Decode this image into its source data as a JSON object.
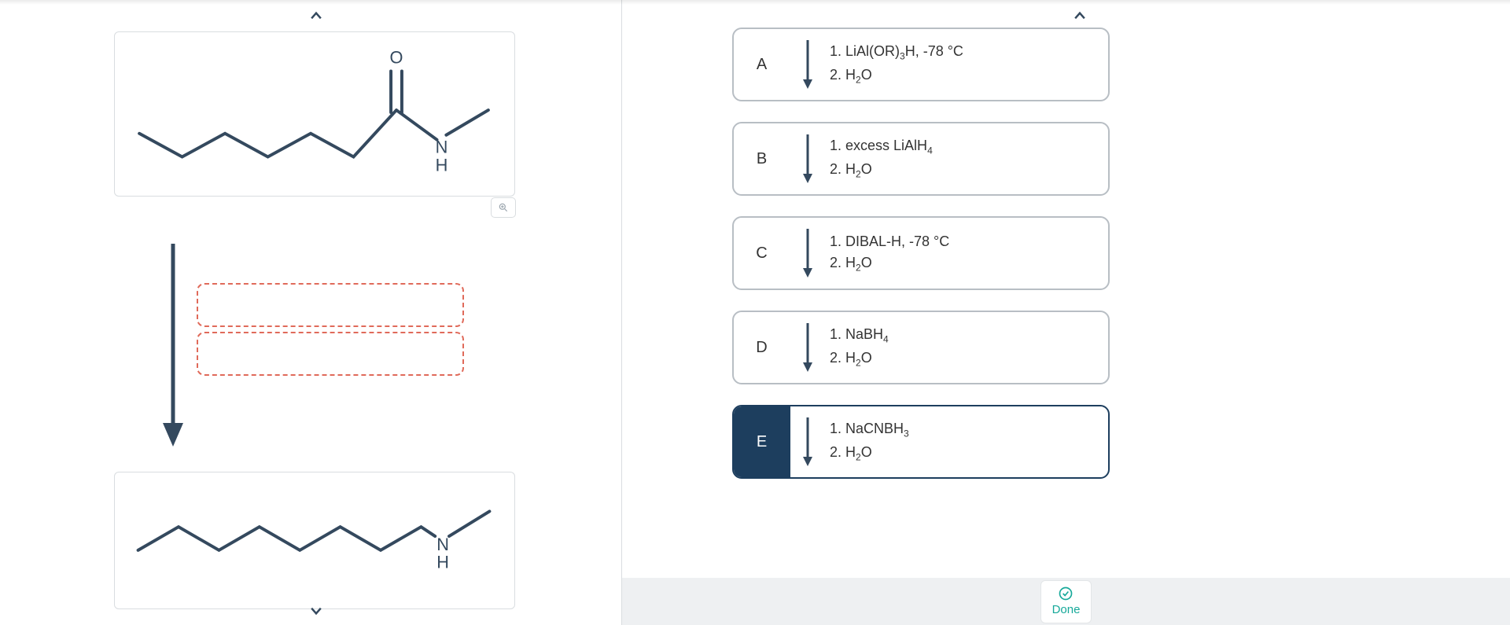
{
  "colors": {
    "border_gray": "#d9dde0",
    "option_border": "#b8bec4",
    "selected": "#1d3e5e",
    "drop_border": "#e06a5a",
    "bond": "#34495e",
    "done_accent": "#17a99a",
    "bottom_bar": "#eef0f2"
  },
  "left": {
    "top_molecule": {
      "label_O": "O",
      "label_N": "N",
      "label_H": "H"
    },
    "bottom_molecule": {
      "label_N": "N",
      "label_H": "H"
    },
    "drop_slots": 2
  },
  "options": [
    {
      "letter": "A",
      "selected": false,
      "line1_prefix": "1. LiAl(OR)",
      "line1_sub": "3",
      "line1_suffix": "H, -78 °C",
      "line2_prefix": "2. H",
      "line2_sub": "2",
      "line2_suffix": "O"
    },
    {
      "letter": "B",
      "selected": false,
      "line1_prefix": "1. excess LiAlH",
      "line1_sub": "4",
      "line1_suffix": "",
      "line2_prefix": "2. H",
      "line2_sub": "2",
      "line2_suffix": "O"
    },
    {
      "letter": "C",
      "selected": false,
      "line1_prefix": "1. DIBAL-H, -78 °C",
      "line1_sub": "",
      "line1_suffix": "",
      "line2_prefix": "2. H",
      "line2_sub": "2",
      "line2_suffix": "O"
    },
    {
      "letter": "D",
      "selected": false,
      "line1_prefix": "1. NaBH",
      "line1_sub": "4",
      "line1_suffix": "",
      "line2_prefix": "2. H",
      "line2_sub": "2",
      "line2_suffix": "O"
    },
    {
      "letter": "E",
      "selected": true,
      "line1_prefix": "1. NaCNBH",
      "line1_sub": "3",
      "line1_suffix": "",
      "line2_prefix": "2. H",
      "line2_sub": "2",
      "line2_suffix": "O"
    }
  ],
  "buttons": {
    "done": "Done"
  }
}
